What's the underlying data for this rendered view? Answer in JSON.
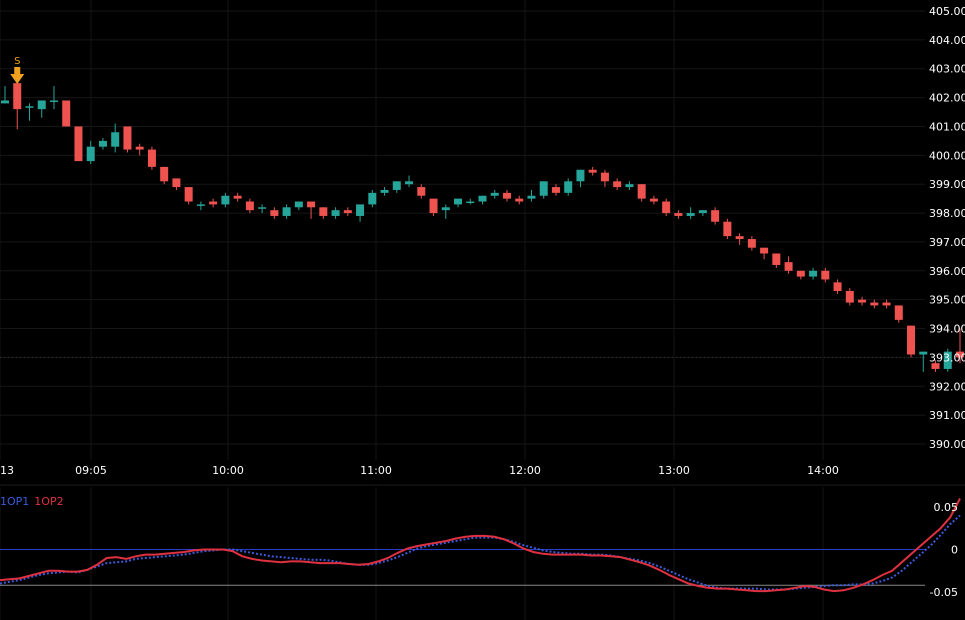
{
  "chart_data": [
    {
      "type": "candlestick",
      "y_axis_labels": [
        "405.00",
        "404.00",
        "403.00",
        "402.00",
        "401.00",
        "400.00",
        "399.00",
        "398.00",
        "397.00",
        "396.00",
        "395.00",
        "394.00",
        "393.00",
        "392.00",
        "391.00",
        "390.00"
      ],
      "x_axis_labels": [
        "13",
        "09:05",
        "10:00",
        "11:00",
        "12:00",
        "13:00",
        "14:00"
      ],
      "ylim": [
        389.9,
        405.15
      ],
      "current_price_label": "393.00",
      "up_color": "#26a69a",
      "down_color": "#ef5350",
      "signal": {
        "label": "S",
        "color": "#f0a020",
        "at_index": 1
      },
      "candles": [
        [
          401.8,
          402.4,
          401.9,
          402.5
        ],
        [
          402.5,
          402.5,
          401.6,
          400.9
        ],
        [
          401.7,
          401.8,
          401.7,
          401.2
        ],
        [
          401.6,
          401.8,
          401.9,
          401.3
        ],
        [
          401.9,
          402.4,
          401.9,
          401.6
        ],
        [
          401.9,
          401.9,
          401.0,
          401.0
        ],
        [
          401.0,
          401.0,
          399.8,
          399.8
        ],
        [
          399.8,
          400.5,
          400.3,
          399.7
        ],
        [
          400.3,
          400.6,
          400.5,
          400.2
        ],
        [
          400.3,
          401.1,
          400.8,
          400.1
        ],
        [
          401.0,
          401.0,
          400.2,
          400.1
        ],
        [
          400.3,
          400.4,
          400.2,
          400.0
        ],
        [
          400.2,
          400.3,
          399.6,
          399.5
        ],
        [
          399.6,
          399.6,
          399.1,
          399.0
        ],
        [
          399.2,
          399.2,
          398.9,
          398.8
        ],
        [
          398.9,
          398.9,
          398.4,
          398.3
        ],
        [
          398.3,
          398.4,
          398.3,
          398.1
        ],
        [
          398.4,
          398.5,
          398.3,
          398.2
        ],
        [
          398.3,
          398.7,
          398.6,
          398.2
        ],
        [
          398.6,
          398.7,
          398.5,
          398.4
        ],
        [
          398.4,
          398.5,
          398.1,
          398.0
        ],
        [
          398.2,
          398.3,
          398.2,
          398.0
        ],
        [
          398.1,
          398.2,
          397.9,
          397.8
        ],
        [
          397.9,
          398.3,
          398.2,
          397.8
        ],
        [
          398.2,
          398.4,
          398.4,
          398.1
        ],
        [
          398.4,
          398.4,
          398.2,
          397.8
        ],
        [
          398.2,
          398.2,
          397.9,
          397.8
        ],
        [
          397.9,
          398.2,
          398.1,
          397.8
        ],
        [
          398.1,
          398.2,
          398.0,
          397.9
        ],
        [
          397.9,
          398.3,
          398.3,
          397.7
        ],
        [
          398.3,
          398.8,
          398.7,
          398.2
        ],
        [
          398.7,
          398.9,
          398.8,
          398.6
        ],
        [
          398.8,
          399.0,
          399.1,
          398.7
        ],
        [
          399.0,
          399.3,
          399.1,
          398.9
        ],
        [
          398.9,
          399.0,
          398.6,
          398.5
        ],
        [
          398.5,
          398.5,
          398.0,
          397.9
        ],
        [
          398.1,
          398.3,
          398.2,
          397.8
        ],
        [
          398.3,
          398.5,
          398.5,
          398.2
        ],
        [
          398.4,
          398.5,
          398.4,
          398.3
        ],
        [
          398.4,
          398.5,
          398.6,
          398.3
        ],
        [
          398.6,
          398.8,
          398.7,
          398.5
        ],
        [
          398.7,
          398.8,
          398.5,
          398.4
        ],
        [
          398.5,
          398.6,
          398.4,
          398.3
        ],
        [
          398.5,
          398.8,
          398.6,
          398.4
        ],
        [
          398.6,
          399.1,
          399.1,
          398.5
        ],
        [
          398.9,
          399.0,
          398.7,
          398.6
        ],
        [
          398.7,
          399.2,
          399.1,
          398.6
        ],
        [
          399.1,
          399.5,
          399.5,
          398.9
        ],
        [
          399.5,
          399.6,
          399.4,
          399.3
        ],
        [
          399.4,
          399.5,
          399.1,
          398.9
        ],
        [
          399.1,
          399.2,
          398.9,
          398.8
        ],
        [
          398.9,
          399.1,
          399.0,
          398.8
        ],
        [
          399.0,
          399.0,
          398.5,
          398.4
        ],
        [
          398.5,
          398.6,
          398.4,
          398.3
        ],
        [
          398.4,
          398.5,
          398.0,
          397.9
        ],
        [
          398.0,
          398.1,
          397.9,
          397.8
        ],
        [
          397.9,
          398.2,
          398.0,
          397.8
        ],
        [
          398.0,
          398.1,
          398.1,
          397.9
        ],
        [
          398.1,
          398.2,
          397.7,
          397.6
        ],
        [
          397.7,
          397.8,
          397.2,
          397.1
        ],
        [
          397.2,
          397.3,
          397.1,
          396.9
        ],
        [
          397.1,
          397.2,
          396.8,
          396.7
        ],
        [
          396.8,
          396.8,
          396.6,
          396.4
        ],
        [
          396.6,
          396.6,
          396.2,
          396.1
        ],
        [
          396.3,
          396.5,
          396.0,
          395.9
        ],
        [
          396.0,
          396.0,
          395.8,
          395.7
        ],
        [
          395.8,
          396.1,
          396.0,
          395.7
        ],
        [
          396.0,
          396.1,
          395.7,
          395.6
        ],
        [
          395.6,
          395.7,
          395.3,
          395.2
        ],
        [
          395.3,
          395.4,
          394.9,
          394.8
        ],
        [
          395.0,
          395.1,
          394.9,
          394.8
        ],
        [
          394.9,
          395.0,
          394.8,
          394.7
        ],
        [
          394.9,
          395.0,
          394.8,
          394.7
        ],
        [
          394.8,
          394.8,
          394.3,
          394.2
        ],
        [
          394.1,
          394.1,
          393.1,
          393.0
        ],
        [
          393.1,
          393.2,
          393.2,
          392.5
        ],
        [
          392.8,
          392.9,
          392.6,
          392.5
        ],
        [
          392.6,
          393.3,
          393.2,
          392.5
        ],
        [
          393.2,
          394.0,
          393.0,
          392.8
        ]
      ]
    },
    {
      "type": "line",
      "legend": [
        "1OP1",
        "1OP2"
      ],
      "series_colors": [
        "#3b5bdb",
        "#e03140"
      ],
      "y_axis_labels": [
        "0.05",
        "0",
        "-0.05"
      ],
      "ylim": [
        -0.055,
        0.06
      ],
      "series": [
        {
          "name": "1OP1",
          "values": [
            -0.04,
            -0.038,
            -0.036,
            -0.033,
            -0.03,
            -0.028,
            -0.027,
            -0.026,
            -0.027,
            -0.024,
            -0.02,
            -0.016,
            -0.015,
            -0.014,
            -0.011,
            -0.01,
            -0.009,
            -0.008,
            -0.007,
            -0.006,
            -0.004,
            -0.002,
            -0.001,
            0.0,
            0.0,
            -0.002,
            -0.004,
            -0.006,
            -0.008,
            -0.009,
            -0.01,
            -0.011,
            -0.012,
            -0.012,
            -0.013,
            -0.015,
            -0.017,
            -0.018,
            -0.018,
            -0.016,
            -0.013,
            -0.009,
            -0.004,
            0.001,
            0.004,
            0.006,
            0.008,
            0.01,
            0.012,
            0.014,
            0.014,
            0.014,
            0.012,
            0.009,
            0.005,
            0.002,
            -0.001,
            -0.003,
            -0.004,
            -0.005,
            -0.005,
            -0.006,
            -0.006,
            -0.007,
            -0.009,
            -0.011,
            -0.013,
            -0.016,
            -0.02,
            -0.025,
            -0.03,
            -0.035,
            -0.039,
            -0.043,
            -0.045,
            -0.046,
            -0.046,
            -0.046,
            -0.046,
            -0.047,
            -0.047,
            -0.047,
            -0.046,
            -0.045,
            -0.044,
            -0.043,
            -0.042,
            -0.042,
            -0.041,
            -0.041,
            -0.04,
            -0.037,
            -0.033,
            -0.025,
            -0.015,
            -0.005,
            0.005,
            0.017,
            0.03,
            0.04
          ]
        },
        {
          "name": "1OP2",
          "values": [
            -0.036,
            -0.035,
            -0.034,
            -0.031,
            -0.028,
            -0.025,
            -0.025,
            -0.026,
            -0.026,
            -0.024,
            -0.018,
            -0.01,
            -0.009,
            -0.011,
            -0.008,
            -0.006,
            -0.006,
            -0.005,
            -0.004,
            -0.003,
            -0.001,
            0.0,
            0.0,
            0.0,
            -0.002,
            -0.008,
            -0.011,
            -0.013,
            -0.014,
            -0.015,
            -0.014,
            -0.014,
            -0.015,
            -0.016,
            -0.016,
            -0.016,
            -0.017,
            -0.018,
            -0.017,
            -0.014,
            -0.01,
            -0.004,
            0.001,
            0.004,
            0.006,
            0.008,
            0.01,
            0.013,
            0.015,
            0.016,
            0.016,
            0.015,
            0.012,
            0.007,
            0.001,
            -0.003,
            -0.005,
            -0.006,
            -0.006,
            -0.006,
            -0.006,
            -0.007,
            -0.007,
            -0.008,
            -0.009,
            -0.012,
            -0.015,
            -0.019,
            -0.024,
            -0.03,
            -0.035,
            -0.04,
            -0.043,
            -0.045,
            -0.046,
            -0.046,
            -0.047,
            -0.048,
            -0.049,
            -0.049,
            -0.048,
            -0.047,
            -0.045,
            -0.043,
            -0.044,
            -0.047,
            -0.049,
            -0.048,
            -0.045,
            -0.041,
            -0.036,
            -0.03,
            -0.025,
            -0.015,
            -0.005,
            0.005,
            0.015,
            0.025,
            0.038,
            0.06
          ]
        }
      ]
    }
  ]
}
